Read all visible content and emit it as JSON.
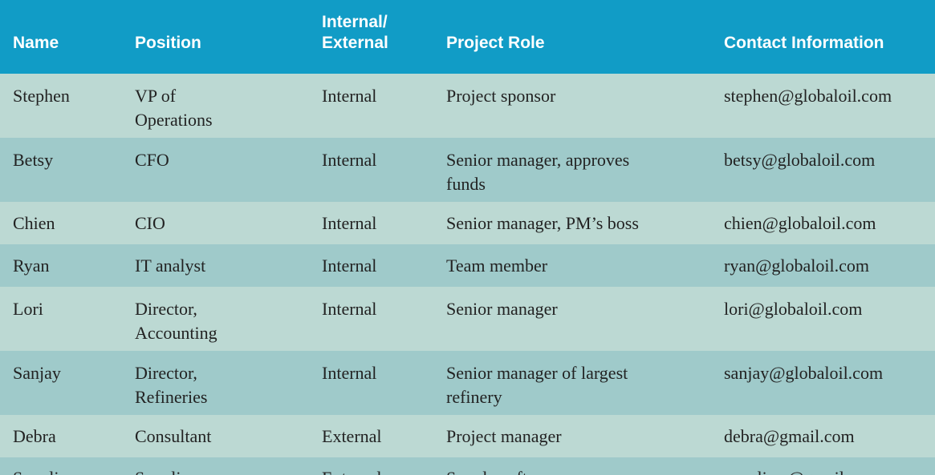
{
  "headers": {
    "name": "Name",
    "position": "Position",
    "internal_external_line1": "Internal/",
    "internal_external_line2": "External",
    "project_role": "Project Role",
    "contact": "Contact Information"
  },
  "rows": [
    {
      "name": "Stephen",
      "position_line1": "VP of",
      "position_line2": "Operations",
      "ie": "Internal",
      "role_line1": "Project sponsor",
      "role_line2": "",
      "contact": "stephen@globaloil.com"
    },
    {
      "name": "Betsy",
      "position_line1": "CFO",
      "position_line2": "",
      "ie": "Internal",
      "role_line1": "Senior manager, approves",
      "role_line2": "funds",
      "contact": "betsy@globaloil.com"
    },
    {
      "name": "Chien",
      "position_line1": "CIO",
      "position_line2": "",
      "ie": "Internal",
      "role_line1": "Senior manager, PM’s boss",
      "role_line2": "",
      "contact": "chien@globaloil.com"
    },
    {
      "name": "Ryan",
      "position_line1": "IT analyst",
      "position_line2": "",
      "ie": "Internal",
      "role_line1": "Team member",
      "role_line2": "",
      "contact": "ryan@globaloil.com"
    },
    {
      "name": "Lori",
      "position_line1": "Director,",
      "position_line2": "Accounting",
      "ie": "Internal",
      "role_line1": "Senior manager",
      "role_line2": "",
      "contact": "lori@globaloil.com"
    },
    {
      "name": "Sanjay",
      "position_line1": "Director,",
      "position_line2": "Refineries",
      "ie": "Internal",
      "role_line1": "Senior manager of largest",
      "role_line2": "refinery",
      "contact": "sanjay@globaloil.com"
    },
    {
      "name": "Debra",
      "position_line1": "Consultant",
      "position_line2": "",
      "ie": "External",
      "role_line1": "Project manager",
      "role_line2": "",
      "contact": "debra@gmail.com"
    },
    {
      "name": "Suppliers",
      "position_line1": "Suppliers",
      "position_line2": "",
      "ie": "External",
      "role_line1": "Supply software",
      "role_line2": "",
      "contact": "suppliers@gmail.com"
    }
  ],
  "colors": {
    "header_bg": "#119cc6",
    "row_light": "#bcd9d3",
    "row_dark": "#9fcaca"
  }
}
